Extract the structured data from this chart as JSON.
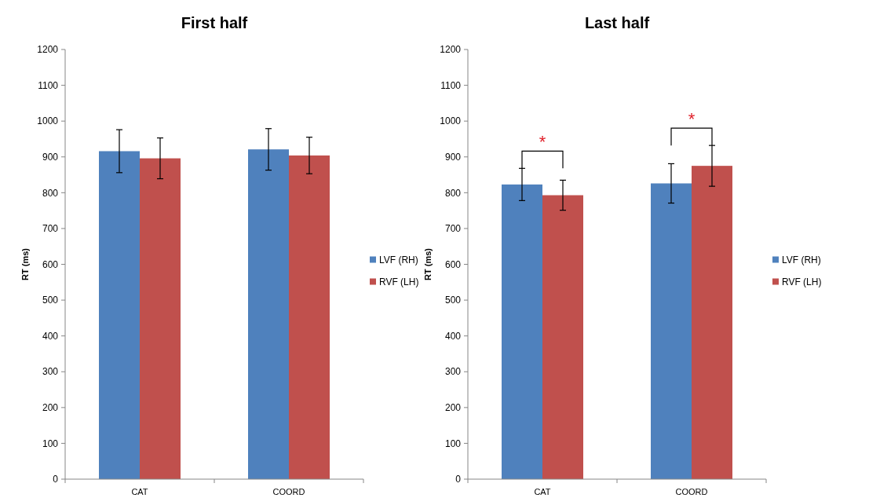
{
  "chart_data": [
    {
      "type": "bar",
      "title": "First half",
      "ylabel": "RT (ms)",
      "categories": [
        "CAT",
        "COORD"
      ],
      "ylim": [
        0,
        1200
      ],
      "yticks": [
        0,
        100,
        200,
        300,
        400,
        500,
        600,
        700,
        800,
        900,
        1000,
        1100,
        1200
      ],
      "grid": false,
      "legend": "right",
      "series": [
        {
          "name": "LVF (RH)",
          "color": "#4f81bd",
          "values": [
            916,
            921
          ],
          "errors": [
            60,
            58
          ]
        },
        {
          "name": "RVF (LH)",
          "color": "#c0504d",
          "values": [
            896,
            904
          ],
          "errors": [
            57,
            51
          ]
        }
      ]
    },
    {
      "type": "bar",
      "title": "Last half",
      "ylabel": "RT (ms)",
      "categories": [
        "CAT",
        "COORD"
      ],
      "ylim": [
        0,
        1200
      ],
      "yticks": [
        0,
        100,
        200,
        300,
        400,
        500,
        600,
        700,
        800,
        900,
        1000,
        1100,
        1200
      ],
      "grid": false,
      "legend": "right",
      "annotations": [
        "*",
        "*"
      ],
      "series": [
        {
          "name": "LVF (RH)",
          "color": "#4f81bd",
          "values": [
            823,
            826
          ],
          "errors": [
            45,
            55
          ]
        },
        {
          "name": "RVF (LH)",
          "color": "#c0504d",
          "values": [
            793,
            875
          ],
          "errors": [
            42,
            57
          ]
        }
      ]
    }
  ]
}
